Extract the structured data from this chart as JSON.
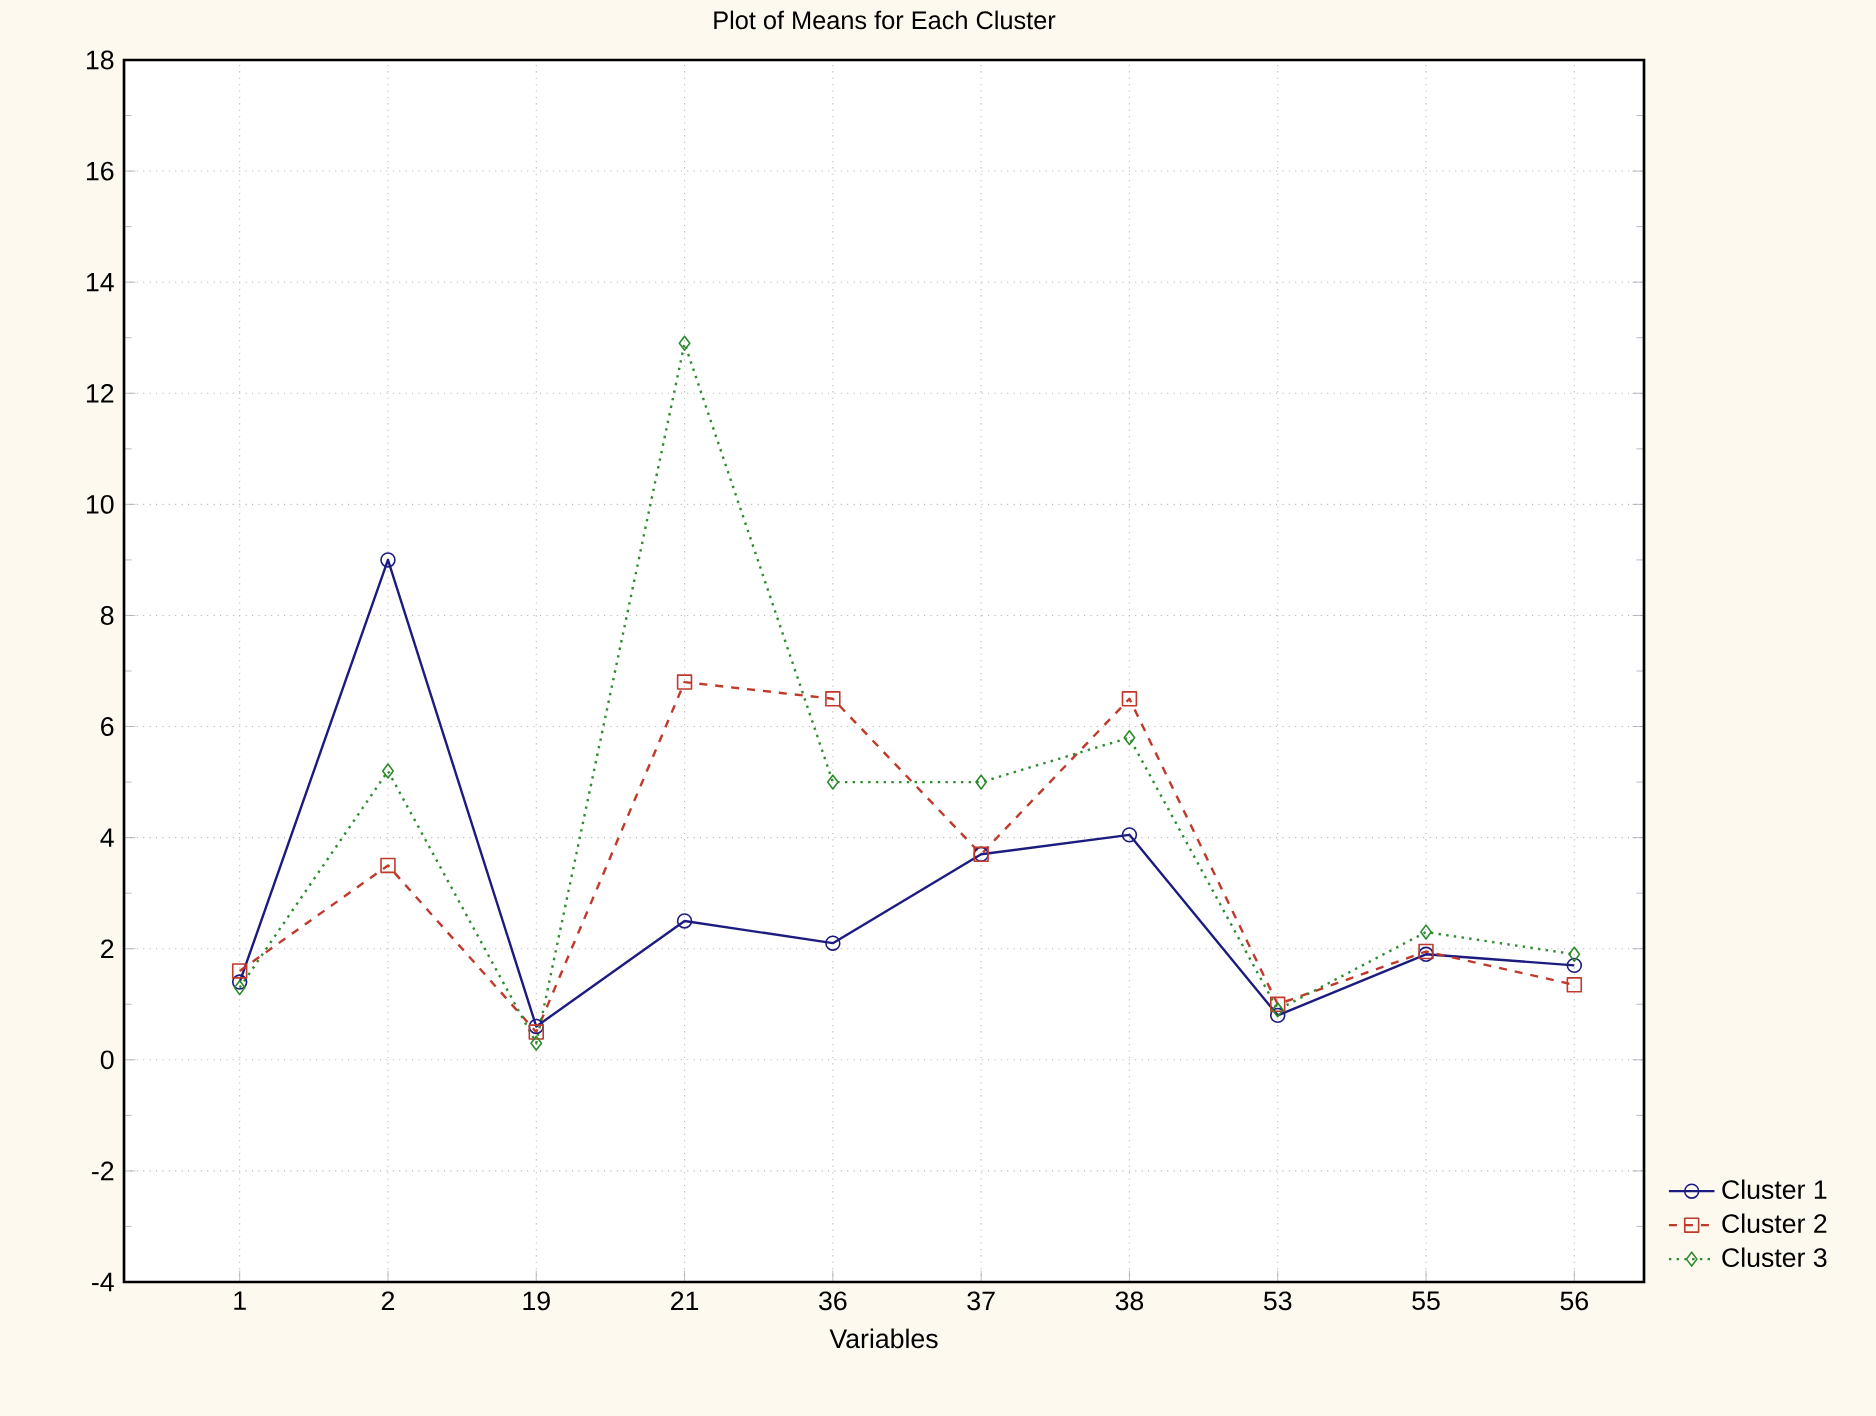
{
  "chart_data": {
    "type": "line",
    "title": "Plot of Means for Each Cluster",
    "xlabel": "Variables",
    "categories": [
      "1",
      "2",
      "19",
      "21",
      "36",
      "37",
      "38",
      "53",
      "55",
      "56"
    ],
    "series": [
      {
        "name": "Cluster  1",
        "color": "#1c1c80",
        "marker": "circle",
        "line_style": "solid",
        "values": [
          1.4,
          9.0,
          0.6,
          2.5,
          2.1,
          3.7,
          4.05,
          0.8,
          1.9,
          1.7
        ]
      },
      {
        "name": "Cluster  2",
        "color": "#c0392b",
        "marker": "square",
        "line_style": "dashed",
        "values": [
          1.6,
          3.5,
          0.5,
          6.8,
          6.5,
          3.7,
          6.5,
          1.0,
          1.95,
          1.35
        ]
      },
      {
        "name": "Cluster  3",
        "color": "#2e8b2e",
        "marker": "diamond",
        "line_style": "dotted",
        "values": [
          1.3,
          5.2,
          0.3,
          12.9,
          5.0,
          5.0,
          5.8,
          0.9,
          2.3,
          1.9
        ]
      }
    ],
    "ylim": [
      -4,
      18
    ],
    "yticks": [
      -4,
      -2,
      0,
      2,
      4,
      6,
      8,
      10,
      12,
      14,
      16,
      18
    ],
    "grid": true,
    "legend": "bottom right"
  }
}
